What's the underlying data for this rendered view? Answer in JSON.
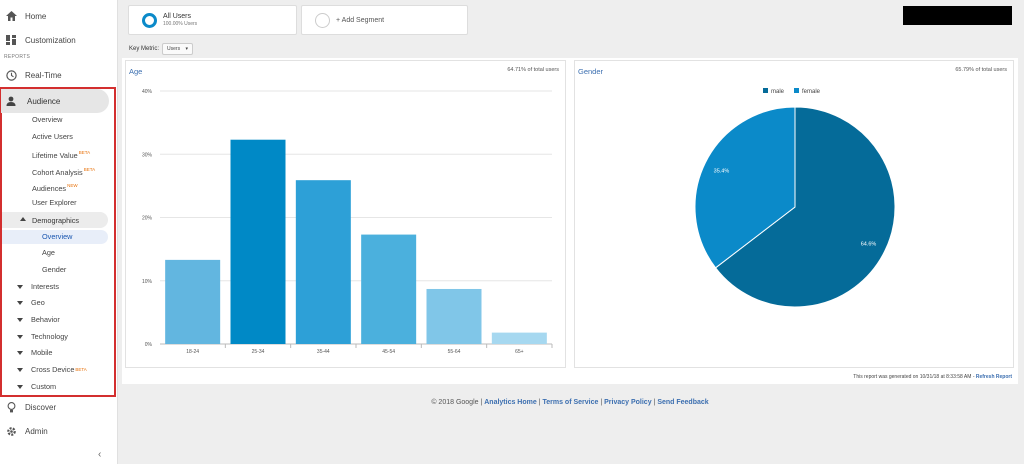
{
  "sidebar": {
    "home": "Home",
    "customization": "Customization",
    "reports_label": "REPORTS",
    "realtime": "Real-Time",
    "audience": "Audience",
    "audience_items": [
      {
        "label": "Overview",
        "badge": ""
      },
      {
        "label": "Active Users",
        "badge": ""
      },
      {
        "label": "Lifetime Value",
        "badge": "BETA"
      },
      {
        "label": "Cohort Analysis",
        "badge": "BETA"
      },
      {
        "label": "Audiences",
        "badge": "NEW"
      },
      {
        "label": "User Explorer",
        "badge": ""
      }
    ],
    "demographics": "Demographics",
    "demographics_items": [
      "Overview",
      "Age",
      "Gender"
    ],
    "collapsed_items": [
      {
        "label": "Interests",
        "badge": ""
      },
      {
        "label": "Geo",
        "badge": ""
      },
      {
        "label": "Behavior",
        "badge": ""
      },
      {
        "label": "Technology",
        "badge": ""
      },
      {
        "label": "Mobile",
        "badge": ""
      },
      {
        "label": "Cross Device",
        "badge": "BETA"
      },
      {
        "label": "Custom",
        "badge": ""
      }
    ],
    "discover": "Discover",
    "admin": "Admin",
    "collapse_glyph": "‹"
  },
  "segments": {
    "all_users_title": "All Users",
    "all_users_sub": "100.00% Users",
    "add_segment": "+ Add Segment"
  },
  "key_metric": {
    "label": "Key Metric:",
    "value": "Users"
  },
  "age_card": {
    "title": "Age",
    "pct": "64.71% of total users"
  },
  "gender_card": {
    "title": "Gender",
    "pct": "65.79% of total users"
  },
  "report_note": {
    "text": "This report was generated on 10/31/18 at 8:33:58 AM - ",
    "link": "Refresh Report"
  },
  "footer": {
    "copyright": "© 2018 Google | ",
    "links": [
      "Analytics Home",
      "Terms of Service",
      "Privacy Policy",
      "Send Feedback"
    ]
  },
  "colors": {
    "accent": "#3c6fb0",
    "highlight_border": "#d32f2f",
    "male": "#056b99",
    "female": "#0b8ac9"
  },
  "chart_data": [
    {
      "type": "bar",
      "title": "Age",
      "categories": [
        "18-24",
        "25-34",
        "35-44",
        "45-54",
        "55-64",
        "65+"
      ],
      "values": [
        13.3,
        32.3,
        25.9,
        17.3,
        8.7,
        1.8
      ],
      "ylim": [
        0,
        40
      ],
      "yticks": [
        "0%",
        "10%",
        "20%",
        "30%",
        "40%"
      ],
      "colors": [
        "#62b6e0",
        "#0089c6",
        "#2da0d7",
        "#4bb0dd",
        "#80c6e8",
        "#a6d8f0"
      ]
    },
    {
      "type": "pie",
      "title": "Gender",
      "legend": [
        "male",
        "female"
      ],
      "values": [
        64.6,
        35.4
      ],
      "labels": [
        "64.6%",
        "35.4%"
      ],
      "colors": [
        "#056b99",
        "#0b8ac9"
      ],
      "legend_position": "top"
    }
  ]
}
